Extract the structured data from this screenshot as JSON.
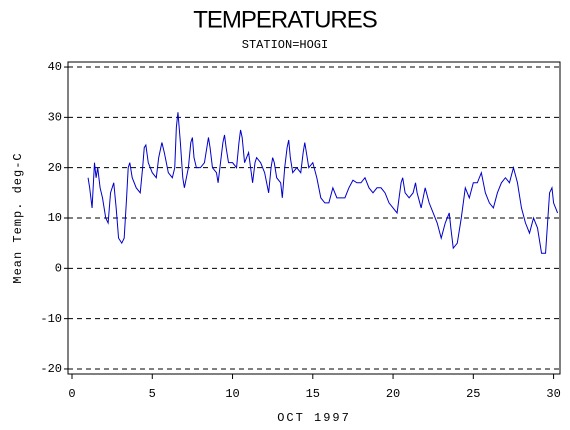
{
  "chart_data": {
    "type": "line",
    "title": "TEMPERATURES",
    "subtitle": "STATION=HOGI",
    "x_label": "OCT 1997",
    "y_label": "Mean Temp. deg-C",
    "xlim": [
      -0.25,
      30.4
    ],
    "ylim": [
      -21,
      41
    ],
    "xticks": [
      0,
      5,
      10,
      15,
      20,
      25,
      30
    ],
    "yticks": [
      -20,
      -10,
      0,
      10,
      20,
      30,
      40
    ],
    "grid": true,
    "series": [
      {
        "name": "Mean Temp",
        "color": "#0000cc",
        "x": [
          1.0,
          1.1,
          1.25,
          1.4,
          1.5,
          1.6,
          1.75,
          1.9,
          2.0,
          2.1,
          2.25,
          2.4,
          2.6,
          2.75,
          2.9,
          3.1,
          3.25,
          3.4,
          3.5,
          3.6,
          3.75,
          4.0,
          4.25,
          4.4,
          4.5,
          4.6,
          4.75,
          5.0,
          5.25,
          5.4,
          5.6,
          5.75,
          6.0,
          6.25,
          6.4,
          6.5,
          6.6,
          6.75,
          6.9,
          7.0,
          7.25,
          7.4,
          7.5,
          7.6,
          7.75,
          8.0,
          8.25,
          8.4,
          8.5,
          8.6,
          8.75,
          9.0,
          9.1,
          9.25,
          9.4,
          9.5,
          9.6,
          9.75,
          10.0,
          10.25,
          10.4,
          10.5,
          10.6,
          10.75,
          11.0,
          11.25,
          11.4,
          11.5,
          11.75,
          12.0,
          12.25,
          12.4,
          12.5,
          12.6,
          12.75,
          13.0,
          13.1,
          13.25,
          13.4,
          13.5,
          13.6,
          13.75,
          14.0,
          14.25,
          14.4,
          14.5,
          14.6,
          14.75,
          15.0,
          15.25,
          15.5,
          15.75,
          16.0,
          16.25,
          16.5,
          16.75,
          17.0,
          17.25,
          17.5,
          17.75,
          18.0,
          18.25,
          18.5,
          18.75,
          19.0,
          19.25,
          19.5,
          19.75,
          20.0,
          20.25,
          20.5,
          20.6,
          20.75,
          21.0,
          21.25,
          21.4,
          21.5,
          21.75,
          22.0,
          22.25,
          22.5,
          22.75,
          23.0,
          23.25,
          23.5,
          23.6,
          23.75,
          24.0,
          24.25,
          24.5,
          24.75,
          25.0,
          25.25,
          25.5,
          25.75,
          26.0,
          26.25,
          26.5,
          26.75,
          27.0,
          27.25,
          27.5,
          27.75,
          28.0,
          28.25,
          28.5,
          28.75,
          29.0,
          29.25,
          29.5,
          29.75,
          29.9,
          30.0,
          30.25
        ],
        "values": [
          18,
          16,
          12,
          21,
          18,
          20,
          16,
          14,
          12,
          10,
          9,
          15,
          17,
          12,
          6,
          5,
          6,
          14,
          20,
          21,
          18,
          16,
          15,
          20,
          24,
          24.5,
          21,
          19,
          18,
          22,
          25,
          23,
          19,
          18,
          20,
          28,
          31,
          25,
          18,
          16,
          20,
          25,
          26,
          22,
          20,
          20,
          21,
          24,
          26,
          24,
          20,
          19,
          17,
          21,
          25,
          26.5,
          24,
          21,
          21,
          20,
          25,
          27.5,
          26,
          21,
          23,
          17,
          21,
          22,
          21,
          19,
          15,
          20,
          22,
          21,
          18,
          17,
          14,
          20,
          24,
          25.5,
          22,
          19,
          20,
          19,
          23,
          25,
          23,
          20,
          21,
          18,
          14,
          13,
          13,
          16,
          14,
          14,
          14,
          16,
          17.5,
          17,
          17,
          18,
          16,
          15,
          16,
          16,
          15,
          13,
          12,
          11,
          17,
          18,
          15,
          14,
          15,
          17,
          15,
          12,
          16,
          13,
          11,
          9,
          6,
          9,
          11,
          8,
          4,
          5,
          10,
          16,
          14,
          17,
          17,
          19,
          15,
          13,
          12,
          15,
          17,
          18,
          17,
          20,
          17,
          12,
          9,
          7,
          10,
          8,
          3,
          3,
          15,
          16,
          13,
          11
        ]
      }
    ]
  }
}
